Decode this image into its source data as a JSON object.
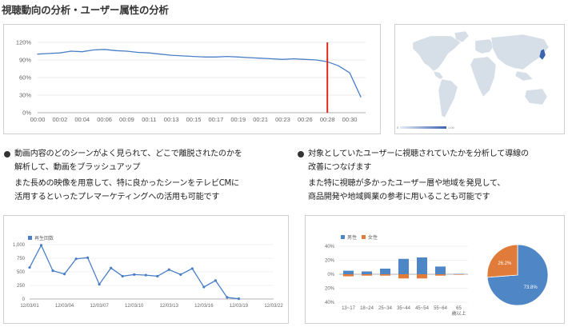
{
  "page_title": "視聴動向の分析・ユーザー属性の分析",
  "sections": [
    {
      "heading_lines": [
        "動画内容のどのシーンがよく見られて、どこで離脱されたのかを",
        "解析して、動画をブラッシュアップ"
      ],
      "body_lines": [
        "また長めの映像を用意して、特に良かったシーンをテレビCMに",
        "活用するといったプレマーケティングへの活用も可能です"
      ]
    },
    {
      "heading_lines": [
        "対象としていたユーザーに視聴されていたかを分析して導線の",
        "改善につなげます"
      ],
      "body_lines": [
        "また特に視聴が多かったユーザー層や地域を発見して、",
        "商品開発や地域興業の参考に用いることも可能です"
      ]
    }
  ],
  "map_legend": {
    "min": "0",
    "max": "1.00"
  },
  "colors": {
    "line": "#4a7fc8",
    "marker": "#d92b1a",
    "male": "#4f86c6",
    "female": "#e07b3a",
    "map_base": "#d6dee8",
    "map_hot": "#3a63b0"
  },
  "chart_data": [
    {
      "type": "line",
      "x": [
        "00:00",
        "00:01",
        "00:02",
        "00:03",
        "00:04",
        "00:05",
        "00:06",
        "00:07",
        "00:09",
        "00:10",
        "00:11",
        "00:12",
        "00:13",
        "00:14",
        "00:15",
        "00:16",
        "00:17",
        "00:18",
        "00:19",
        "00:20",
        "00:21",
        "00:22",
        "00:23",
        "00:24",
        "00:26",
        "00:27",
        "00:28",
        "00:29",
        "00:30",
        "00:31"
      ],
      "x_ticks": [
        "00:00",
        "00:02",
        "00:04",
        "00:06",
        "00:09",
        "00:11",
        "00:13",
        "00:15",
        "00:17",
        "00:19",
        "00:21",
        "00:23",
        "00:26",
        "00:28",
        "00:30"
      ],
      "values": [
        100,
        101,
        102,
        105,
        104,
        107,
        108,
        106,
        105,
        103,
        102,
        100,
        98,
        97,
        96,
        95,
        95,
        96,
        95,
        94,
        93,
        92,
        91,
        92,
        91,
        90,
        87,
        80,
        68,
        27
      ],
      "yticks": [
        "0%",
        "30%",
        "60%",
        "90%",
        "120%"
      ],
      "ylim": [
        0,
        120
      ],
      "marker_x": "00:28"
    },
    {
      "type": "line",
      "legend": "再生回数",
      "x": [
        "12/03/01",
        "12/03/02",
        "12/03/03",
        "12/03/04",
        "12/03/05",
        "12/03/06",
        "12/03/07",
        "12/03/08",
        "12/03/09",
        "12/03/10",
        "12/03/11",
        "12/03/12",
        "12/03/13",
        "12/03/14",
        "12/03/15",
        "12/03/16",
        "12/03/17",
        "12/03/18",
        "12/03/19",
        "12/03/20"
      ],
      "x_ticks": [
        "12/03/01",
        "12/03/04",
        "12/03/07",
        "12/03/10",
        "12/03/13",
        "12/03/16",
        "12/03/19",
        "12/03/22"
      ],
      "values": [
        580,
        990,
        520,
        460,
        740,
        760,
        270,
        570,
        420,
        450,
        440,
        420,
        540,
        450,
        560,
        220,
        340,
        30,
        5,
        null
      ],
      "yticks": [
        "0",
        "250",
        "500",
        "750",
        "1,000"
      ],
      "ylim": [
        0,
        1000
      ]
    },
    {
      "type": "bar",
      "categories": [
        "13~17",
        "18~24",
        "25~34",
        "35~44",
        "45~54",
        "55~64",
        "65\n歳以上"
      ],
      "series": [
        {
          "name": "男性",
          "values": [
            5,
            4,
            8,
            22,
            24,
            11,
            0.5
          ]
        },
        {
          "name": "女性",
          "values": [
            -3,
            -2,
            -2,
            -6,
            -6,
            -2,
            -0.3
          ]
        }
      ],
      "yticks": [
        "40%",
        "20%",
        "0%",
        "20%",
        "40%"
      ],
      "ylim": [
        -40,
        40
      ]
    },
    {
      "type": "pie",
      "slices": [
        {
          "label": "73.8%",
          "value": 73.8,
          "color": "#4f86c6"
        },
        {
          "label": "26.2%",
          "value": 26.2,
          "color": "#e07b3a"
        }
      ]
    }
  ]
}
